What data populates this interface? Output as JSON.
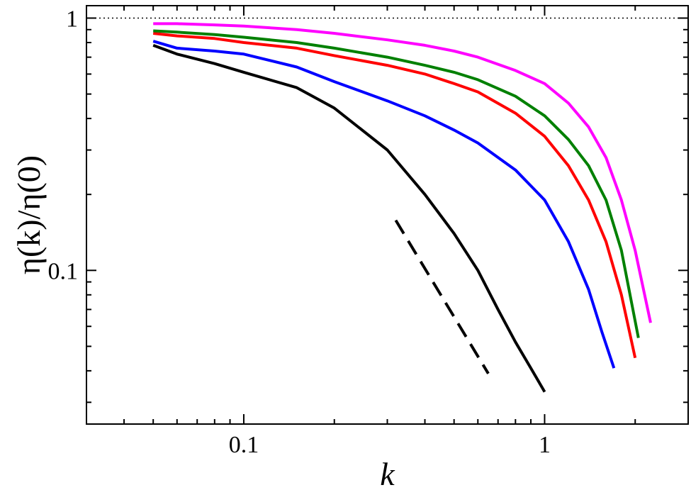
{
  "chart_data": {
    "type": "line",
    "title": "",
    "xlabel": "k",
    "ylabel": "η(k)/η(0)",
    "xscale": "log",
    "yscale": "log",
    "xlim": [
      0.03,
      3.0
    ],
    "ylim": [
      0.0246,
      1.12
    ],
    "grid": false,
    "legend": "none",
    "x_ticks": [
      {
        "value": 0.1,
        "label": "0.1"
      },
      {
        "value": 1,
        "label": "1"
      }
    ],
    "y_ticks": [
      {
        "value": 0.1,
        "label": "0.1"
      },
      {
        "value": 1,
        "label": "1"
      }
    ],
    "reference_line": {
      "y": 1,
      "style": "dotted",
      "color": "#000000"
    },
    "series": [
      {
        "color": "#000000",
        "style": "solid",
        "points": [
          [
            0.05,
            0.78
          ],
          [
            0.06,
            0.72
          ],
          [
            0.08,
            0.66
          ],
          [
            0.1,
            0.61
          ],
          [
            0.15,
            0.53
          ],
          [
            0.2,
            0.44
          ],
          [
            0.3,
            0.3
          ],
          [
            0.4,
            0.2
          ],
          [
            0.5,
            0.14
          ],
          [
            0.6,
            0.1
          ],
          [
            0.7,
            0.07
          ],
          [
            0.8,
            0.052
          ],
          [
            0.9,
            0.041
          ],
          [
            1.0,
            0.033
          ]
        ]
      },
      {
        "color": "#0000ff",
        "style": "solid",
        "points": [
          [
            0.05,
            0.81
          ],
          [
            0.06,
            0.76
          ],
          [
            0.08,
            0.74
          ],
          [
            0.1,
            0.72
          ],
          [
            0.15,
            0.64
          ],
          [
            0.2,
            0.56
          ],
          [
            0.3,
            0.47
          ],
          [
            0.4,
            0.41
          ],
          [
            0.5,
            0.36
          ],
          [
            0.6,
            0.32
          ],
          [
            0.8,
            0.25
          ],
          [
            1.0,
            0.19
          ],
          [
            1.2,
            0.13
          ],
          [
            1.4,
            0.084
          ],
          [
            1.55,
            0.057
          ],
          [
            1.7,
            0.041
          ]
        ]
      },
      {
        "color": "#ff0000",
        "style": "solid",
        "points": [
          [
            0.05,
            0.87
          ],
          [
            0.06,
            0.85
          ],
          [
            0.08,
            0.83
          ],
          [
            0.1,
            0.8
          ],
          [
            0.15,
            0.76
          ],
          [
            0.2,
            0.71
          ],
          [
            0.3,
            0.65
          ],
          [
            0.4,
            0.6
          ],
          [
            0.5,
            0.55
          ],
          [
            0.6,
            0.51
          ],
          [
            0.8,
            0.42
          ],
          [
            1.0,
            0.34
          ],
          [
            1.2,
            0.26
          ],
          [
            1.4,
            0.19
          ],
          [
            1.6,
            0.13
          ],
          [
            1.8,
            0.08
          ],
          [
            2.0,
            0.045
          ]
        ]
      },
      {
        "color": "#008000",
        "style": "solid",
        "points": [
          [
            0.05,
            0.89
          ],
          [
            0.06,
            0.88
          ],
          [
            0.08,
            0.86
          ],
          [
            0.1,
            0.84
          ],
          [
            0.15,
            0.8
          ],
          [
            0.2,
            0.76
          ],
          [
            0.3,
            0.7
          ],
          [
            0.4,
            0.65
          ],
          [
            0.5,
            0.61
          ],
          [
            0.6,
            0.57
          ],
          [
            0.8,
            0.49
          ],
          [
            1.0,
            0.41
          ],
          [
            1.2,
            0.33
          ],
          [
            1.4,
            0.26
          ],
          [
            1.6,
            0.19
          ],
          [
            1.8,
            0.12
          ],
          [
            2.05,
            0.054
          ]
        ]
      },
      {
        "color": "#ff00ff",
        "style": "solid",
        "points": [
          [
            0.05,
            0.95
          ],
          [
            0.06,
            0.95
          ],
          [
            0.08,
            0.94
          ],
          [
            0.1,
            0.93
          ],
          [
            0.15,
            0.9
          ],
          [
            0.2,
            0.87
          ],
          [
            0.3,
            0.82
          ],
          [
            0.4,
            0.78
          ],
          [
            0.5,
            0.74
          ],
          [
            0.6,
            0.7
          ],
          [
            0.8,
            0.62
          ],
          [
            1.0,
            0.55
          ],
          [
            1.2,
            0.46
          ],
          [
            1.4,
            0.37
          ],
          [
            1.6,
            0.28
          ],
          [
            1.8,
            0.19
          ],
          [
            2.0,
            0.12
          ],
          [
            2.25,
            0.062
          ]
        ]
      },
      {
        "color": "#000000",
        "style": "dashed",
        "points": [
          [
            0.32,
            0.158
          ],
          [
            0.65,
            0.039
          ]
        ]
      }
    ]
  }
}
